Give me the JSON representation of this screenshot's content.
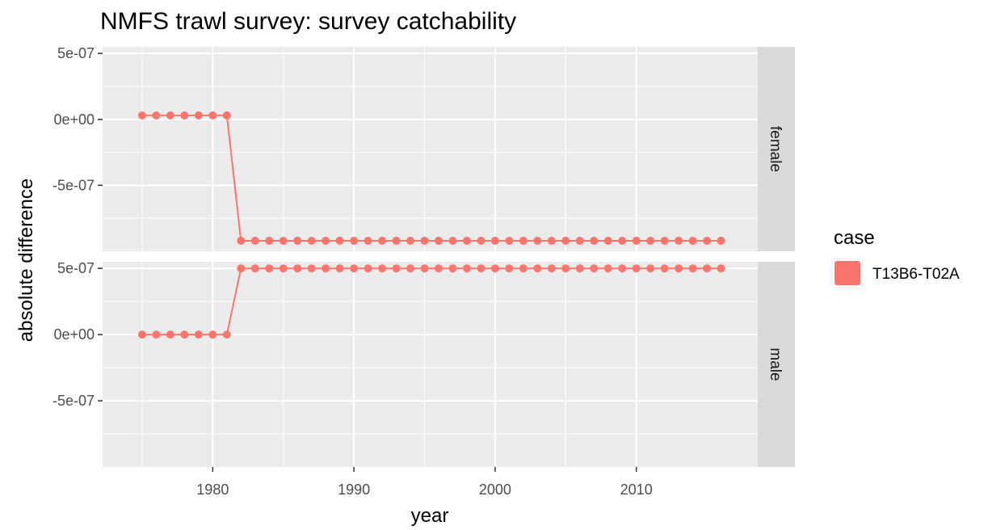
{
  "chart_data": {
    "type": "line",
    "title": "NMFS trawl survey: survey catchability",
    "xlabel": "year",
    "ylabel": "absolute difference",
    "xlim": [
      1972.2,
      2018.6
    ],
    "ylim": [
      -1e-06,
      5.5e-07
    ],
    "x_ticks": [
      1980,
      1990,
      2000,
      2010
    ],
    "x_tick_labels": [
      "1980",
      "1990",
      "2000",
      "2010"
    ],
    "y_ticks": [
      5e-07,
      0,
      -5e-07
    ],
    "y_tick_labels": [
      "5e-07",
      "0e+00",
      "-5e-07"
    ],
    "grid": true,
    "legend": {
      "title": "case",
      "position": "right",
      "entries": [
        {
          "label": "T13B6-T02A",
          "color": "#F8766D"
        }
      ]
    },
    "x": [
      1975,
      1976,
      1977,
      1978,
      1979,
      1980,
      1981,
      1982,
      1983,
      1984,
      1985,
      1986,
      1987,
      1988,
      1989,
      1990,
      1991,
      1992,
      1993,
      1994,
      1995,
      1996,
      1997,
      1998,
      1999,
      2000,
      2001,
      2002,
      2003,
      2004,
      2005,
      2006,
      2007,
      2008,
      2009,
      2010,
      2011,
      2012,
      2013,
      2014,
      2015,
      2016
    ],
    "panels": [
      {
        "strip": "female",
        "series": [
          {
            "name": "T13B6-T02A",
            "values": [
              3e-08,
              3e-08,
              3e-08,
              3e-08,
              3e-08,
              3e-08,
              3e-08,
              -9.2e-07,
              -9.2e-07,
              -9.2e-07,
              -9.2e-07,
              -9.2e-07,
              -9.2e-07,
              -9.2e-07,
              -9.2e-07,
              -9.2e-07,
              -9.2e-07,
              -9.2e-07,
              -9.2e-07,
              -9.2e-07,
              -9.2e-07,
              -9.2e-07,
              -9.2e-07,
              -9.2e-07,
              -9.2e-07,
              -9.2e-07,
              -9.2e-07,
              -9.2e-07,
              -9.2e-07,
              -9.2e-07,
              -9.2e-07,
              -9.2e-07,
              -9.2e-07,
              -9.2e-07,
              -9.2e-07,
              -9.2e-07,
              -9.2e-07,
              -9.2e-07,
              -9.2e-07,
              -9.2e-07,
              -9.2e-07,
              -9.2e-07
            ]
          }
        ]
      },
      {
        "strip": "male",
        "series": [
          {
            "name": "T13B6-T02A",
            "values": [
              0,
              0,
              0,
              0,
              0,
              0,
              0,
              5e-07,
              5e-07,
              5e-07,
              5e-07,
              5e-07,
              5e-07,
              5e-07,
              5e-07,
              5e-07,
              5e-07,
              5e-07,
              5e-07,
              5e-07,
              5e-07,
              5e-07,
              5e-07,
              5e-07,
              5e-07,
              5e-07,
              5e-07,
              5e-07,
              5e-07,
              5e-07,
              5e-07,
              5e-07,
              5e-07,
              5e-07,
              5e-07,
              5e-07,
              5e-07,
              5e-07,
              5e-07,
              5e-07,
              5e-07,
              5e-07
            ]
          }
        ]
      }
    ],
    "colors": {
      "series": "#F8766D",
      "panel_background": "#EBEBEB",
      "strip_background": "#D9D9D9",
      "grid": "#FFFFFF"
    }
  }
}
